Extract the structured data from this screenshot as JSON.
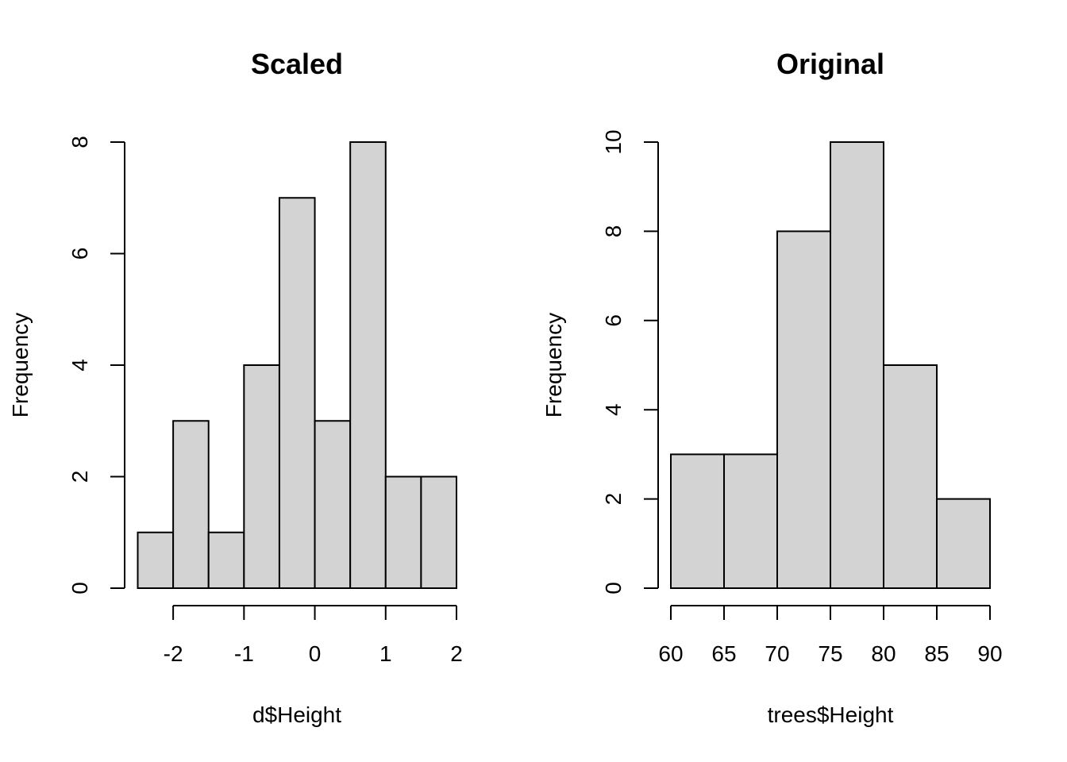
{
  "chart_data": [
    {
      "type": "bar",
      "title": "Scaled",
      "xlabel": "d$Height",
      "ylabel": "Frequency",
      "bin_edges": [
        -2.5,
        -2,
        -1.5,
        -1,
        -0.5,
        0,
        0.5,
        1,
        1.5,
        2
      ],
      "values": [
        1,
        3,
        1,
        4,
        7,
        3,
        8,
        2,
        2
      ],
      "xticks": [
        -2,
        -1,
        0,
        1,
        2
      ],
      "xtick_labels": [
        "-2",
        "-1",
        "0",
        "1",
        "2"
      ],
      "yticks": [
        0,
        2,
        4,
        6,
        8
      ],
      "ytick_labels": [
        "0",
        "2",
        "4",
        "6",
        "8"
      ],
      "xlim": [
        -2.5,
        2
      ],
      "ylim": [
        0,
        8
      ],
      "bar_color": "#d3d3d3"
    },
    {
      "type": "bar",
      "title": "Original",
      "xlabel": "trees$Height",
      "ylabel": "Frequency",
      "bin_edges": [
        60,
        65,
        70,
        75,
        80,
        85,
        90
      ],
      "values": [
        3,
        3,
        8,
        10,
        5,
        2
      ],
      "xticks": [
        60,
        65,
        70,
        75,
        80,
        85,
        90
      ],
      "xtick_labels": [
        "60",
        "65",
        "70",
        "75",
        "80",
        "85",
        "90"
      ],
      "yticks": [
        0,
        2,
        4,
        6,
        8,
        10
      ],
      "ytick_labels": [
        "0",
        "2",
        "4",
        "6",
        "8",
        "10"
      ],
      "xlim": [
        60,
        90
      ],
      "ylim": [
        0,
        10
      ],
      "bar_color": "#d3d3d3"
    }
  ]
}
